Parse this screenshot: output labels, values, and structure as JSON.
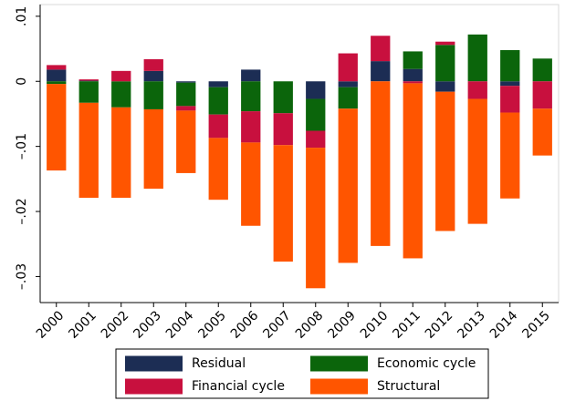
{
  "chart_data": {
    "type": "stacked-bar",
    "categories": [
      "2000",
      "2001",
      "2002",
      "2003",
      "2004",
      "2005",
      "2006",
      "2007",
      "2008",
      "2009",
      "2010",
      "2011",
      "2012",
      "2013",
      "2014",
      "2015"
    ],
    "series": [
      {
        "name": "Residual",
        "color": "#1c2d54",
        "values": [
          0.0018,
          0.0001,
          0,
          0.0016,
          -0.0002,
          -0.0009,
          0.0018,
          0,
          -0.0027,
          -0.0009,
          0.0031,
          0.0019,
          -0.0016,
          0,
          -0.0007,
          0
        ]
      },
      {
        "name": "Economic cycle",
        "color": "#0b650b",
        "values": [
          -0.0004,
          -0.0033,
          -0.004,
          -0.0043,
          -0.0036,
          -0.0042,
          -0.0046,
          -0.0049,
          -0.0049,
          -0.0033,
          0,
          0.0027,
          0.0056,
          0.0072,
          0.0048,
          0.0035
        ]
      },
      {
        "name": "Financial cycle",
        "color": "#c8103e",
        "values": [
          0.0007,
          0.0002,
          0.0016,
          0.0018,
          -0.0007,
          -0.0036,
          -0.0048,
          -0.0049,
          -0.0026,
          0.0043,
          0.0039,
          -0.0003,
          0.0005,
          -0.0027,
          -0.0041,
          -0.0042
        ]
      },
      {
        "name": "Structural",
        "color": "#ff5500",
        "values": [
          -0.0133,
          -0.0146,
          -0.0139,
          -0.0122,
          -0.0096,
          -0.0095,
          -0.0128,
          -0.0179,
          -0.0216,
          -0.0237,
          -0.0253,
          -0.0269,
          -0.0214,
          -0.0192,
          -0.0132,
          -0.0072
        ]
      }
    ],
    "ylim": [
      -0.034,
      0.0118
    ],
    "yticks": [
      {
        "value": 0.01,
        "label": ".01"
      },
      0,
      {
        "value": -0.01,
        "label": "–.01"
      },
      {
        "value": -0.02,
        "label": "–.02"
      },
      {
        "value": -0.03,
        "label": "–.03"
      }
    ],
    "grid": false,
    "legend": "bottom"
  }
}
